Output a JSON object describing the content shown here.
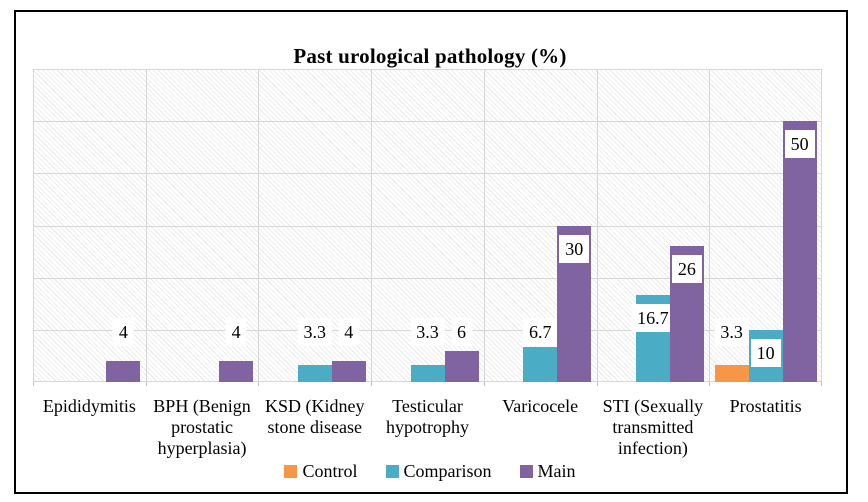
{
  "chart_data": {
    "type": "bar",
    "title": "Past urological pathology (%)",
    "categories": [
      "Epididymitis",
      "BPH (Benign prostatic hyperplasia)",
      "KSD (Kidney stone disease",
      "Testicular hypotrophy",
      "Varicocele",
      "STI (Sexually transmitted infection)",
      "Prostatitis"
    ],
    "series": [
      {
        "name": "Control",
        "color": "#F79646",
        "values": [
          0,
          0,
          0,
          0,
          0,
          0,
          3.3
        ]
      },
      {
        "name": "Comparison",
        "color": "#4BACC6",
        "values": [
          0,
          0,
          3.3,
          3.3,
          6.7,
          16.7,
          10
        ]
      },
      {
        "name": "Main",
        "color": "#8064A2",
        "values": [
          4,
          4,
          4,
          6,
          30,
          26,
          50
        ]
      }
    ],
    "ylim": [
      0,
      60
    ],
    "y_major_unit": 10,
    "y_axis_labels_shown": false,
    "grid": true,
    "plot_background": "diagonal-hatch",
    "legend_position": "bottom",
    "value_labels_shown": true,
    "colors": {
      "gridline": "#d6d6d6",
      "value_label_background": "#ffffff",
      "text": "#000000",
      "chart_border": "#000000"
    }
  }
}
